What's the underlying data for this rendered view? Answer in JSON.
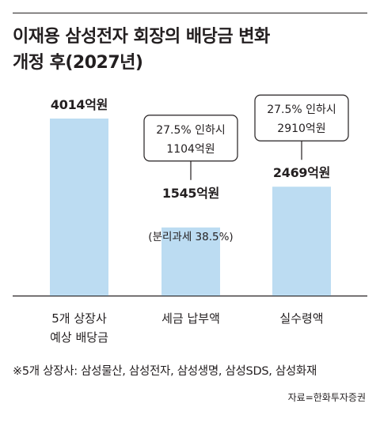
{
  "title": {
    "line1": "이재용 삼성전자 회장의 배당금 변화",
    "line2": "개정 후(2027년)"
  },
  "colors": {
    "bar": "#bcdcf2",
    "text": "#231f20",
    "axis": "#231f20",
    "callout_border": "#231f20"
  },
  "chart_data": {
    "type": "bar",
    "categories": [
      [
        "5개 상장사",
        "예상 배당금"
      ],
      [
        "세금 납부액"
      ],
      [
        "실수령액"
      ]
    ],
    "values": [
      4014,
      1545,
      2469
    ],
    "value_labels": [
      "4014억원",
      "1545억원",
      "2469억원"
    ],
    "sub_labels": [
      "",
      "(분리과세 38.5%)",
      ""
    ],
    "callouts": [
      null,
      [
        "27.5% 인하시",
        "1104억원"
      ],
      [
        "27.5% 인하시",
        "2910억원"
      ]
    ],
    "ylim": [
      0,
      4014
    ]
  },
  "note": "※5개 상장사: 삼성물산, 삼성전자, 삼성생명, 삼성SDS, 삼성화재",
  "source": "자료=한화투자증권"
}
